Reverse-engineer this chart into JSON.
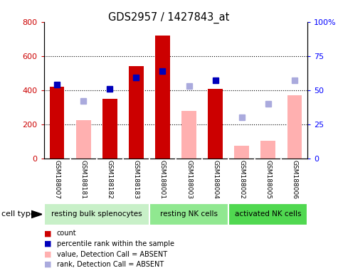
{
  "title": "GDS2957 / 1427843_at",
  "samples": [
    "GSM188007",
    "GSM188181",
    "GSM188182",
    "GSM188183",
    "GSM188001",
    "GSM188003",
    "GSM188004",
    "GSM188002",
    "GSM188005",
    "GSM188006"
  ],
  "count_values": [
    420,
    0,
    348,
    540,
    718,
    0,
    408,
    0,
    0,
    0
  ],
  "absent_values": [
    0,
    225,
    0,
    0,
    0,
    280,
    0,
    75,
    105,
    370
  ],
  "percentile_rank": [
    54,
    0,
    51,
    59,
    64,
    0,
    57,
    0,
    0,
    0
  ],
  "absent_rank": [
    0,
    42,
    0,
    0,
    0,
    53,
    0,
    30,
    40,
    57
  ],
  "groups": [
    {
      "label": "resting bulk splenocytes",
      "start": 0,
      "end": 4,
      "color": "#c8f0c8"
    },
    {
      "label": "resting NK cells",
      "start": 4,
      "end": 7,
      "color": "#90e890"
    },
    {
      "label": "activated NK cells",
      "start": 7,
      "end": 10,
      "color": "#50d850"
    }
  ],
  "ylim_left": [
    0,
    800
  ],
  "ylim_right": [
    0,
    100
  ],
  "yticks_left": [
    0,
    200,
    400,
    600,
    800
  ],
  "yticks_right": [
    0,
    25,
    50,
    75,
    100
  ],
  "yticklabels_right": [
    "0",
    "25",
    "50",
    "75",
    "100%"
  ],
  "red_color": "#cc0000",
  "pink_color": "#ffb0b0",
  "blue_color": "#0000bb",
  "lightblue_color": "#aaaadd",
  "sample_bg": "#d0d0d0",
  "plot_bg": "#ffffff"
}
